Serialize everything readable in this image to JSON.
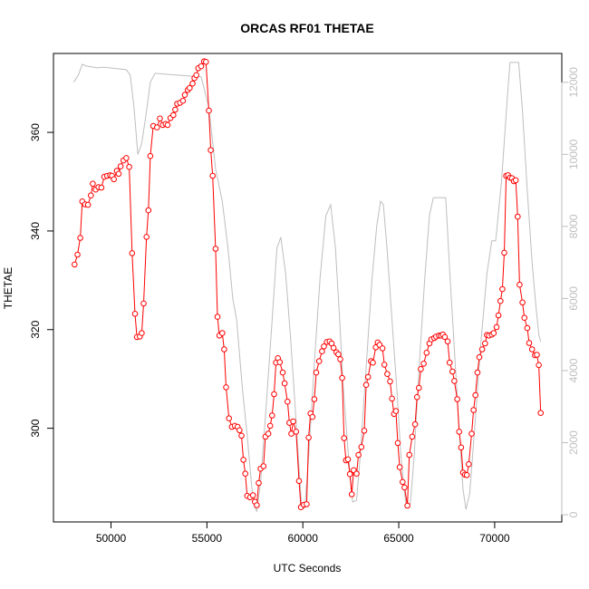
{
  "chart_data": {
    "type": "line",
    "title": "ORCAS RF01 THETAE",
    "xlabel": "UTC Seconds",
    "ylabel": "THETAE",
    "xlim": [
      47000,
      73500
    ],
    "ylim": [
      281,
      376
    ],
    "y2lim": [
      -200,
      12800
    ],
    "x_ticks": [
      50000,
      55000,
      60000,
      65000,
      70000
    ],
    "x_tick_labels": [
      "50000",
      "55000",
      "60000",
      "65000",
      "70000"
    ],
    "y_ticks": [
      300,
      320,
      340,
      360
    ],
    "y_tick_labels": [
      "300",
      "320",
      "340",
      "360"
    ],
    "y2_ticks": [
      0,
      2000,
      4000,
      6000,
      8000,
      10000,
      12000
    ],
    "y2_tick_labels": [
      "0",
      "2000",
      "4000",
      "6000",
      "8000",
      "10000",
      "12000"
    ],
    "grid": false,
    "series": [
      {
        "role": "thetae",
        "axis": "left",
        "color": "#ff0000",
        "marker": "open-circle",
        "points": [
          [
            48100,
            333.2
          ],
          [
            48250,
            335.2
          ],
          [
            48400,
            338.6
          ],
          [
            48500,
            346.0
          ],
          [
            48650,
            345.4
          ],
          [
            48800,
            345.3
          ],
          [
            48950,
            347.2
          ],
          [
            49050,
            349.6
          ],
          [
            49200,
            348.4
          ],
          [
            49350,
            348.9
          ],
          [
            49500,
            348.8
          ],
          [
            49650,
            351.0
          ],
          [
            49800,
            351.2
          ],
          [
            49950,
            351.3
          ],
          [
            50050,
            351.2
          ],
          [
            50150,
            350.5
          ],
          [
            50300,
            352.2
          ],
          [
            50400,
            351.6
          ],
          [
            50500,
            353.1
          ],
          [
            50650,
            354.3
          ],
          [
            50800,
            354.8
          ],
          [
            50950,
            353.0
          ],
          [
            51100,
            335.5
          ],
          [
            51250,
            323.2
          ],
          [
            51350,
            318.5
          ],
          [
            51500,
            318.6
          ],
          [
            51600,
            319.3
          ],
          [
            51700,
            325.3
          ],
          [
            51850,
            338.8
          ],
          [
            51950,
            344.2
          ],
          [
            52050,
            355.2
          ],
          [
            52200,
            361.3
          ],
          [
            52400,
            361.0
          ],
          [
            52550,
            362.8
          ],
          [
            52700,
            361.5
          ],
          [
            52850,
            361.7
          ],
          [
            52950,
            361.5
          ],
          [
            53100,
            362.9
          ],
          [
            53250,
            363.5
          ],
          [
            53350,
            364.6
          ],
          [
            53450,
            365.8
          ],
          [
            53600,
            366.0
          ],
          [
            53750,
            366.4
          ],
          [
            53850,
            367.6
          ],
          [
            54000,
            368.6
          ],
          [
            54100,
            369.0
          ],
          [
            54250,
            369.9
          ],
          [
            54350,
            371.0
          ],
          [
            54450,
            371.6
          ],
          [
            54550,
            373.0
          ],
          [
            54700,
            373.4
          ],
          [
            54850,
            374.4
          ],
          [
            54950,
            374.3
          ],
          [
            55100,
            364.4
          ],
          [
            55200,
            356.4
          ],
          [
            55300,
            351.2
          ],
          [
            55450,
            336.4
          ],
          [
            55550,
            322.6
          ],
          [
            55650,
            318.8
          ],
          [
            55800,
            319.3
          ],
          [
            55900,
            316.0
          ],
          [
            56000,
            308.3
          ],
          [
            56150,
            302.0
          ],
          [
            56300,
            300.3
          ],
          [
            56450,
            300.5
          ],
          [
            56600,
            300.3
          ],
          [
            56700,
            299.6
          ],
          [
            56800,
            298.5
          ],
          [
            56900,
            293.6
          ],
          [
            57000,
            290.8
          ],
          [
            57100,
            286.3
          ],
          [
            57250,
            286.0
          ],
          [
            57400,
            286.4
          ],
          [
            57500,
            285.1
          ],
          [
            57600,
            284.4
          ],
          [
            57700,
            288.9
          ],
          [
            57800,
            291.8
          ],
          [
            57950,
            292.3
          ],
          [
            58050,
            298.3
          ],
          [
            58200,
            298.9
          ],
          [
            58300,
            300.5
          ],
          [
            58400,
            302.6
          ],
          [
            58500,
            306.9
          ],
          [
            58600,
            313.3
          ],
          [
            58700,
            314.2
          ],
          [
            58800,
            313.4
          ],
          [
            58950,
            311.3
          ],
          [
            59050,
            309.1
          ],
          [
            59200,
            305.4
          ],
          [
            59300,
            301.1
          ],
          [
            59400,
            298.9
          ],
          [
            59500,
            301.4
          ],
          [
            59650,
            299.3
          ],
          [
            59800,
            289.3
          ],
          [
            59900,
            284.0
          ],
          [
            60050,
            284.5
          ],
          [
            60200,
            284.6
          ],
          [
            60300,
            298.1
          ],
          [
            60400,
            303.0
          ],
          [
            60500,
            302.3
          ],
          [
            60600,
            305.9
          ],
          [
            60700,
            311.3
          ],
          [
            60850,
            313.6
          ],
          [
            61000,
            315.6
          ],
          [
            61100,
            316.6
          ],
          [
            61250,
            317.5
          ],
          [
            61400,
            317.6
          ],
          [
            61500,
            317.2
          ],
          [
            61600,
            316.3
          ],
          [
            61750,
            315.4
          ],
          [
            61850,
            315.0
          ],
          [
            61950,
            314.0
          ],
          [
            62050,
            310.2
          ],
          [
            62150,
            298.0
          ],
          [
            62250,
            293.5
          ],
          [
            62350,
            293.7
          ],
          [
            62450,
            290.7
          ],
          [
            62550,
            286.6
          ],
          [
            62650,
            291.5
          ],
          [
            62800,
            290.8
          ],
          [
            62900,
            294.6
          ],
          [
            63050,
            296.2
          ],
          [
            63200,
            299.5
          ],
          [
            63300,
            308.8
          ],
          [
            63400,
            310.4
          ],
          [
            63550,
            313.6
          ],
          [
            63650,
            313.3
          ],
          [
            63800,
            316.4
          ],
          [
            63900,
            317.4
          ],
          [
            64000,
            316.9
          ],
          [
            64150,
            316.2
          ],
          [
            64250,
            312.9
          ],
          [
            64400,
            311.0
          ],
          [
            64550,
            309.5
          ],
          [
            64650,
            306.0
          ],
          [
            64750,
            302.9
          ],
          [
            64850,
            303.5
          ],
          [
            64950,
            297.0
          ],
          [
            65050,
            292.1
          ],
          [
            65200,
            289.1
          ],
          [
            65300,
            288.0
          ],
          [
            65450,
            284.3
          ],
          [
            65550,
            294.6
          ],
          [
            65700,
            298.3
          ],
          [
            65850,
            300.8
          ],
          [
            65950,
            306.3
          ],
          [
            66050,
            308.2
          ],
          [
            66150,
            312.0
          ],
          [
            66300,
            313.1
          ],
          [
            66450,
            315.3
          ],
          [
            66600,
            317.2
          ],
          [
            66700,
            318.0
          ],
          [
            66850,
            318.3
          ],
          [
            66950,
            318.6
          ],
          [
            67100,
            318.8
          ],
          [
            67200,
            318.8
          ],
          [
            67300,
            319.0
          ],
          [
            67400,
            318.5
          ],
          [
            67550,
            317.6
          ],
          [
            67650,
            313.3
          ],
          [
            67800,
            311.5
          ],
          [
            67900,
            309.6
          ],
          [
            68050,
            305.9
          ],
          [
            68150,
            299.3
          ],
          [
            68250,
            296.1
          ],
          [
            68350,
            291.0
          ],
          [
            68450,
            290.6
          ],
          [
            68550,
            290.5
          ],
          [
            68650,
            292.7
          ],
          [
            68800,
            298.9
          ],
          [
            68900,
            303.7
          ],
          [
            69000,
            306.7
          ],
          [
            69100,
            311.3
          ],
          [
            69200,
            314.4
          ],
          [
            69350,
            316.0
          ],
          [
            69500,
            317.2
          ],
          [
            69600,
            318.9
          ],
          [
            69700,
            318.8
          ],
          [
            69850,
            319.0
          ],
          [
            69950,
            319.3
          ],
          [
            70100,
            320.5
          ],
          [
            70200,
            322.9
          ],
          [
            70300,
            325.8
          ],
          [
            70400,
            328.2
          ],
          [
            70500,
            335.6
          ],
          [
            70600,
            351.2
          ],
          [
            70700,
            351.3
          ],
          [
            70800,
            350.8
          ],
          [
            70900,
            350.7
          ],
          [
            71000,
            350.1
          ],
          [
            71100,
            350.3
          ],
          [
            71200,
            342.9
          ],
          [
            71300,
            329.1
          ],
          [
            71450,
            325.5
          ],
          [
            71550,
            322.4
          ],
          [
            71700,
            320.3
          ],
          [
            71800,
            317.3
          ],
          [
            71950,
            316.0
          ],
          [
            72100,
            314.8
          ],
          [
            72200,
            314.9
          ],
          [
            72300,
            312.8
          ],
          [
            72400,
            303.1
          ]
        ]
      },
      {
        "role": "altitude",
        "axis": "right",
        "color": "#bebebe",
        "marker": "none",
        "points": [
          [
            48050,
            12000
          ],
          [
            48300,
            12200
          ],
          [
            48500,
            12500
          ],
          [
            48700,
            12450
          ],
          [
            49300,
            12400
          ],
          [
            49600,
            12420
          ],
          [
            50300,
            12380
          ],
          [
            50800,
            12350
          ],
          [
            51000,
            12200
          ],
          [
            51200,
            11300
          ],
          [
            51400,
            10000
          ],
          [
            51600,
            10300
          ],
          [
            51850,
            11200
          ],
          [
            52050,
            12000
          ],
          [
            52300,
            12250
          ],
          [
            53000,
            12220
          ],
          [
            54000,
            12180
          ],
          [
            54700,
            12150
          ],
          [
            55100,
            11300
          ],
          [
            55450,
            9600
          ],
          [
            55800,
            8700
          ],
          [
            56100,
            7400
          ],
          [
            56350,
            6000
          ],
          [
            56550,
            5400
          ],
          [
            56850,
            3500
          ],
          [
            57100,
            2200
          ],
          [
            57350,
            700
          ],
          [
            57500,
            200
          ],
          [
            57600,
            100
          ],
          [
            57800,
            900
          ],
          [
            58100,
            3100
          ],
          [
            58400,
            5400
          ],
          [
            58650,
            7400
          ],
          [
            58850,
            7700
          ],
          [
            59100,
            6700
          ],
          [
            59350,
            5000
          ],
          [
            59600,
            3000
          ],
          [
            59800,
            1300
          ],
          [
            59950,
            150
          ],
          [
            60100,
            200
          ],
          [
            60300,
            1600
          ],
          [
            60600,
            4200
          ],
          [
            60900,
            6600
          ],
          [
            61200,
            8300
          ],
          [
            61450,
            8600
          ],
          [
            61700,
            7400
          ],
          [
            61900,
            5600
          ],
          [
            62100,
            3600
          ],
          [
            62350,
            1800
          ],
          [
            62600,
            350
          ],
          [
            62800,
            400
          ],
          [
            63000,
            1700
          ],
          [
            63300,
            4100
          ],
          [
            63600,
            6500
          ],
          [
            63850,
            8000
          ],
          [
            64050,
            8700
          ],
          [
            64200,
            8600
          ],
          [
            64400,
            7300
          ],
          [
            64650,
            5400
          ],
          [
            64900,
            3500
          ],
          [
            65100,
            1700
          ],
          [
            65350,
            350
          ],
          [
            65600,
            300
          ],
          [
            65800,
            1600
          ],
          [
            66050,
            4000
          ],
          [
            66350,
            6500
          ],
          [
            66600,
            8300
          ],
          [
            66800,
            8800
          ],
          [
            67200,
            8800
          ],
          [
            67450,
            8800
          ],
          [
            67650,
            6800
          ],
          [
            67900,
            4600
          ],
          [
            68150,
            2400
          ],
          [
            68350,
            700
          ],
          [
            68500,
            150
          ],
          [
            68700,
            600
          ],
          [
            69000,
            2700
          ],
          [
            69300,
            4900
          ],
          [
            69600,
            6700
          ],
          [
            69850,
            7600
          ],
          [
            70050,
            7600
          ],
          [
            70350,
            9200
          ],
          [
            70650,
            11500
          ],
          [
            70800,
            12550
          ],
          [
            71250,
            12550
          ],
          [
            71450,
            11200
          ],
          [
            71700,
            9000
          ],
          [
            71950,
            7000
          ],
          [
            72150,
            5800
          ],
          [
            72300,
            5000
          ],
          [
            72400,
            4800
          ]
        ]
      }
    ]
  }
}
